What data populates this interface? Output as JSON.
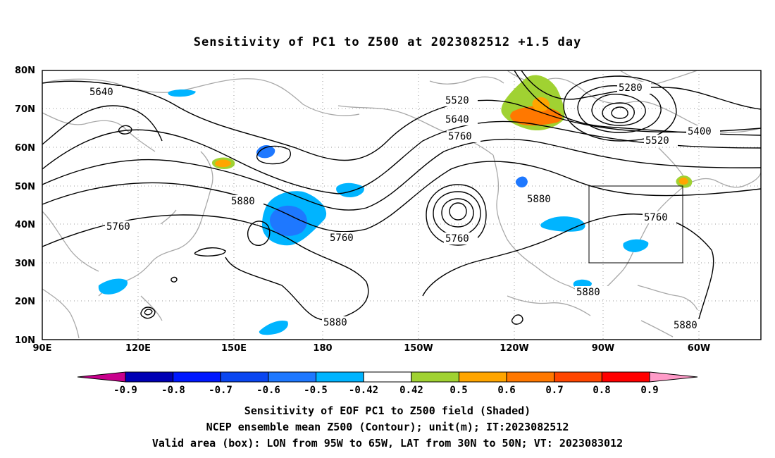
{
  "title": "Sensitivity of PC1 to Z500 at 2023082512 +1.5 day",
  "lat_labels": [
    "80N",
    "70N",
    "60N",
    "50N",
    "40N",
    "30N",
    "20N",
    "10N"
  ],
  "lon_labels": [
    "90E",
    "120E",
    "150E",
    "180",
    "150W",
    "120W",
    "90W",
    "60W"
  ],
  "contour_labels": [
    "5640",
    "5520",
    "5640",
    "5760",
    "5280",
    "5400",
    "5520",
    "5880",
    "5760",
    "5760",
    "5760",
    "5880",
    "5760",
    "5880",
    "5880",
    "5880"
  ],
  "valid_box": {
    "lon_min": "95W",
    "lon_max": "65W",
    "lat_min": "30N",
    "lat_max": "50N"
  },
  "colorbar": {
    "labels": [
      "-0.9",
      "-0.8",
      "-0.7",
      "-0.6",
      "-0.5",
      "-0.42",
      "0.42",
      "0.5",
      "0.6",
      "0.7",
      "0.8",
      "0.9"
    ],
    "colors": [
      "#0000b4",
      "#0018ff",
      "#0a46f0",
      "#1e78ff",
      "#00b4ff",
      "#ffffff",
      "#a0d232",
      "#ffa500",
      "#ff7800",
      "#ff4600",
      "#ff0000"
    ],
    "low_end_color": "#c8008c",
    "high_end_color": "#ff9bc8"
  },
  "captions": [
    "Sensitivity of EOF PC1 to Z500 field (Shaded)",
    "NCEP ensemble mean Z500 (Contour); unit(m); IT:2023082512",
    "Valid area (box): LON from 95W to 65W, LAT from 30N to 50N; VT: 2023083012"
  ]
}
